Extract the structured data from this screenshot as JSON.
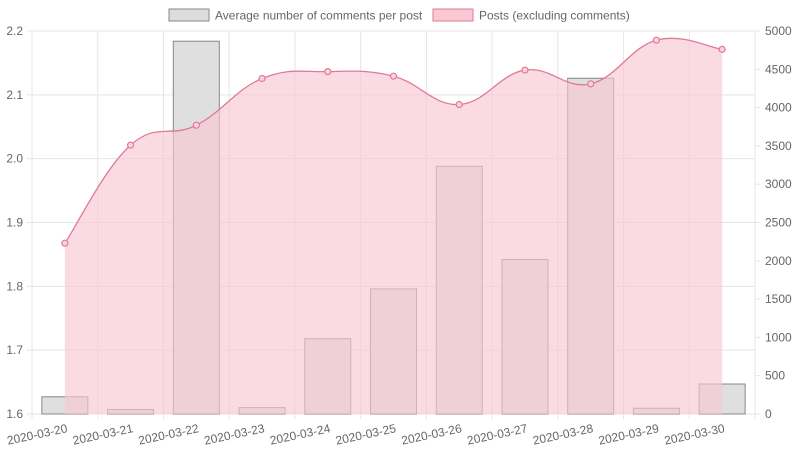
{
  "chart_data": {
    "type": "bar",
    "categories": [
      "2020-03-20",
      "2020-03-21",
      "2020-03-22",
      "2020-03-23",
      "2020-03-24",
      "2020-03-25",
      "2020-03-26",
      "2020-03-27",
      "2020-03-28",
      "2020-03-29",
      "2020-03-30"
    ],
    "series": [
      {
        "name": "Average number of comments per post",
        "type": "bar",
        "axis": "left",
        "values": [
          1.627,
          1.607,
          2.184,
          1.61,
          1.718,
          1.796,
          1.988,
          1.842,
          2.126,
          1.609,
          1.647
        ],
        "color": "#dddddd",
        "border_color": "#888888"
      },
      {
        "name": "Posts (excluding comments)",
        "type": "line",
        "axis": "right",
        "values": [
          2230,
          3510,
          3770,
          4380,
          4470,
          4410,
          4040,
          4490,
          4310,
          4880,
          4760
        ],
        "color": "#e07a96",
        "fill_color": "#f9c8d4"
      }
    ],
    "y_left": {
      "ticks": [
        "1.6",
        "1.7",
        "1.8",
        "1.9",
        "2.0",
        "2.1",
        "2.2"
      ],
      "ylim": [
        1.6,
        2.2
      ]
    },
    "y_right": {
      "ticks": [
        "0",
        "500",
        "1000",
        "1500",
        "2000",
        "2500",
        "3000",
        "3500",
        "4000",
        "4500",
        "5000"
      ],
      "ylim": [
        0,
        5000
      ]
    },
    "grid": true,
    "legend_position": "top"
  }
}
